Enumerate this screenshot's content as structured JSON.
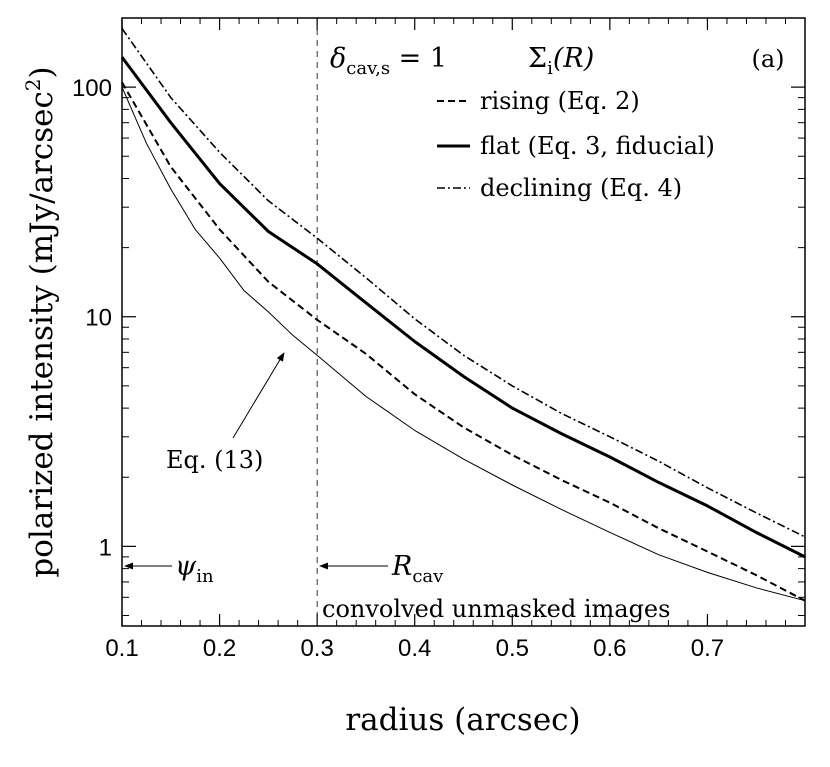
{
  "chart_data": {
    "type": "line",
    "title": "",
    "panel_label": "(a)",
    "xlabel": "radius (arcsec)",
    "ylabel_prefix": "polarized intensity (mJy/arcsec",
    "ylabel_superscript": "2",
    "ylabel_suffix": ")",
    "xscale": "linear",
    "yscale": "log",
    "xlim": [
      0.1,
      0.8
    ],
    "ylim": [
      0.45,
      200
    ],
    "x_ticks": [
      0.1,
      0.2,
      0.3,
      0.4,
      0.5,
      0.6,
      0.7
    ],
    "x_tick_labels": [
      "0.1",
      "0.2",
      "0.3",
      "0.4",
      "0.5",
      "0.6",
      "0.7"
    ],
    "y_major_ticks": [
      1,
      10,
      100
    ],
    "y_tick_labels": [
      "1",
      "10",
      "100"
    ],
    "series": [
      {
        "name": "rising (Eq. 2)",
        "style": "dashed",
        "x": [
          0.1,
          0.15,
          0.2,
          0.25,
          0.3,
          0.35,
          0.4,
          0.45,
          0.5,
          0.55,
          0.6,
          0.65,
          0.7,
          0.75,
          0.8
        ],
        "y": [
          105,
          45,
          24,
          14.2,
          9.7,
          6.9,
          4.6,
          3.3,
          2.5,
          1.95,
          1.55,
          1.2,
          0.95,
          0.75,
          0.58
        ]
      },
      {
        "name": "flat (Eq. 3, fiducial)",
        "style": "solid-thick",
        "x": [
          0.1,
          0.15,
          0.2,
          0.25,
          0.3,
          0.35,
          0.4,
          0.45,
          0.5,
          0.55,
          0.6,
          0.65,
          0.7,
          0.75,
          0.8
        ],
        "y": [
          135,
          70,
          38,
          23.5,
          17,
          11.5,
          7.8,
          5.5,
          4.0,
          3.1,
          2.45,
          1.9,
          1.5,
          1.15,
          0.9
        ]
      },
      {
        "name": "declining (Eq. 4)",
        "style": "dashdot",
        "x": [
          0.1,
          0.15,
          0.2,
          0.25,
          0.3,
          0.35,
          0.4,
          0.45,
          0.5,
          0.55,
          0.6,
          0.65,
          0.7,
          0.75,
          0.8
        ],
        "y": [
          180,
          90,
          52,
          32,
          22,
          14.8,
          9.8,
          6.8,
          5.0,
          3.8,
          3.0,
          2.35,
          1.8,
          1.4,
          1.1
        ]
      },
      {
        "name": "Eq. (13)",
        "style": "solid-thin",
        "x": [
          0.1,
          0.125,
          0.15,
          0.175,
          0.2,
          0.225,
          0.25,
          0.275,
          0.3,
          0.35,
          0.4,
          0.45,
          0.5,
          0.55,
          0.6,
          0.65,
          0.7,
          0.75,
          0.8
        ],
        "y": [
          100,
          57,
          36,
          24,
          18,
          13,
          10.5,
          8.3,
          6.8,
          4.5,
          3.2,
          2.4,
          1.85,
          1.45,
          1.15,
          0.92,
          0.77,
          0.66,
          0.58
        ]
      }
    ],
    "vertical_line": {
      "x": 0.3,
      "style": "dashed-thin"
    },
    "annotations": {
      "delta_label": "δ",
      "delta_sub": "cav,s",
      "delta_eq": " = 1",
      "sigma_label": "Σ",
      "sigma_sub": "i",
      "sigma_arg": "(R)",
      "eq13_label": "Eq. (13)",
      "psi_label": "ψ",
      "psi_sub": "in",
      "rcav_label": "R",
      "rcav_sub": "cav",
      "bottom_note": "convolved unmasked images"
    }
  }
}
